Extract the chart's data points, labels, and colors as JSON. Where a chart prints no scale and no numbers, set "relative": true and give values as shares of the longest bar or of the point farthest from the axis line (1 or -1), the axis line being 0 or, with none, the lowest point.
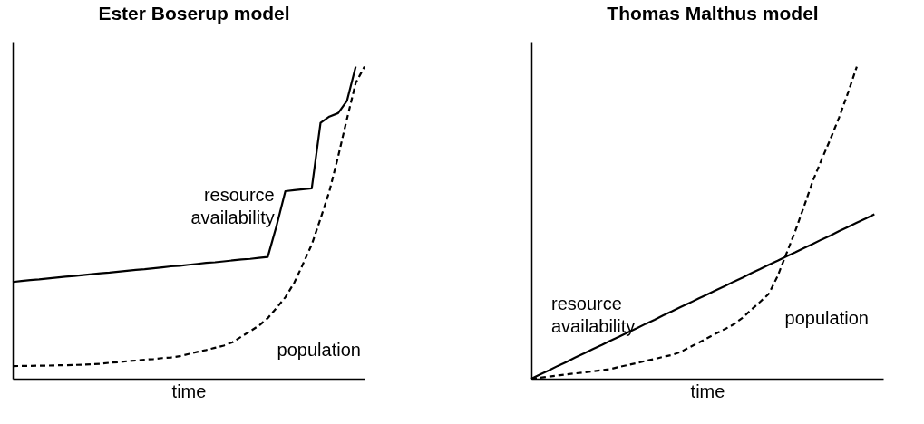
{
  "chart_data": [
    {
      "type": "line",
      "title": "Ester Boserup model",
      "xlabel": "time",
      "relative": true,
      "tick_labels": false,
      "marker": "none",
      "categories": [
        null,
        null,
        null,
        null,
        null,
        null,
        null,
        null,
        null,
        null,
        null,
        null,
        null,
        null,
        null,
        null,
        null,
        null,
        null,
        null,
        null,
        null,
        null,
        null,
        null,
        null,
        null,
        null,
        null,
        null,
        null,
        null,
        null,
        null,
        null,
        null,
        null,
        null,
        null,
        null,
        null
      ],
      "series": [
        {
          "name": "resource availability",
          "color": "#000000",
          "line_style": "solid",
          "values": [
            0.31,
            0.313,
            0.316,
            0.318,
            0.321,
            0.324,
            0.327,
            0.329,
            0.332,
            0.335,
            0.338,
            0.34,
            0.343,
            0.346,
            0.349,
            0.351,
            0.354,
            0.357,
            0.36,
            0.362,
            0.365,
            0.368,
            0.371,
            0.373,
            0.376,
            0.379,
            0.382,
            0.384,
            0.387,
            0.39,
            0.49,
            0.601,
            0.604,
            0.607,
            0.61,
            0.82,
            0.84,
            0.851,
            0.89,
            1.0,
            null
          ]
        },
        {
          "name": "population",
          "color": "#000000",
          "line_style": "dashed",
          "values": [
            0.04,
            0.041,
            0.041,
            0.042,
            0.042,
            0.043,
            0.043,
            0.044,
            0.045,
            0.046,
            0.048,
            0.051,
            0.053,
            0.056,
            0.058,
            0.061,
            0.063,
            0.066,
            0.068,
            0.072,
            0.079,
            0.086,
            0.092,
            0.099,
            0.106,
            0.117,
            0.135,
            0.152,
            0.17,
            0.194,
            0.227,
            0.261,
            0.307,
            0.367,
            0.43,
            0.513,
            0.6,
            0.712,
            0.832,
            0.948,
            1.0
          ]
        }
      ]
    },
    {
      "type": "line",
      "title": "Thomas Malthus model",
      "xlabel": "time",
      "relative": true,
      "tick_labels": false,
      "marker": "none",
      "categories": [
        null,
        null,
        null,
        null,
        null,
        null,
        null,
        null,
        null,
        null,
        null,
        null,
        null,
        null,
        null,
        null,
        null,
        null,
        null,
        null,
        null,
        null,
        null,
        null,
        null,
        null,
        null,
        null,
        null,
        null,
        null,
        null,
        null,
        null,
        null,
        null,
        null,
        null,
        null,
        null,
        null
      ],
      "series": [
        {
          "name": "resource availability",
          "color": "#000000",
          "line_style": "solid",
          "values": [
            0.0,
            0.014,
            0.027,
            0.041,
            0.054,
            0.068,
            0.081,
            0.095,
            0.108,
            0.122,
            0.135,
            0.149,
            0.162,
            0.176,
            0.189,
            0.203,
            0.216,
            0.23,
            0.243,
            0.257,
            0.27,
            0.284,
            0.297,
            0.311,
            0.324,
            0.338,
            0.351,
            0.365,
            0.378,
            0.392,
            0.405,
            0.419,
            0.432,
            0.446,
            0.459,
            0.473,
            0.486,
            0.5,
            0.513,
            0.527,
            null
          ]
        },
        {
          "name": "population",
          "color": "#000000",
          "line_style": "dashed",
          "values": [
            0.0,
            0.003,
            0.007,
            0.01,
            0.014,
            0.017,
            0.02,
            0.024,
            0.027,
            0.031,
            0.038,
            0.044,
            0.05,
            0.057,
            0.063,
            0.07,
            0.076,
            0.086,
            0.101,
            0.115,
            0.13,
            0.145,
            0.159,
            0.174,
            0.195,
            0.221,
            0.246,
            0.272,
            0.329,
            0.401,
            0.473,
            0.552,
            0.634,
            0.702,
            0.768,
            0.838,
            0.916,
            1.0,
            null,
            null,
            null
          ]
        }
      ]
    }
  ]
}
